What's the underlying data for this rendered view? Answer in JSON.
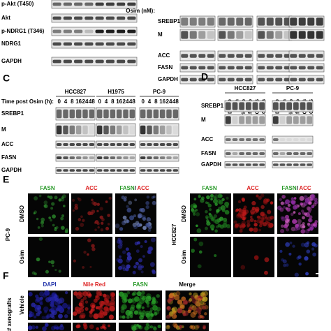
{
  "panel_top_left": {
    "rows": [
      "p-Akt (T450)",
      "Akt",
      "p-NDRG1 (T346)",
      "NDRG1",
      "GAPDH"
    ]
  },
  "panel_top_right": {
    "axis_label": "Osim (nM):",
    "rows": [
      "SREBP1",
      "M",
      "ACC",
      "FASN",
      "GAPDH"
    ]
  },
  "panel_c": {
    "letter": "C",
    "axis_label": "Time post Osim (h):",
    "groups": [
      {
        "name": "HCC827",
        "lanes": [
          "0",
          "4",
          "8",
          "16",
          "24",
          "48"
        ]
      },
      {
        "name": "H1975",
        "lanes": [
          "0",
          "4",
          "8",
          "16",
          "24",
          "48"
        ]
      },
      {
        "name": "PC-9",
        "lanes": [
          "0",
          "4",
          "8",
          "16",
          "24",
          "48"
        ]
      }
    ],
    "rows": [
      "SREBP1",
      "M",
      "ACC",
      "FASN",
      "GAPDH"
    ]
  },
  "panel_d": {
    "letter": "D",
    "groups": [
      {
        "name": "HCC827",
        "lanes": [
          "DMSO",
          "Osim",
          "Erlotinib",
          "Afatinib",
          "EGF816",
          "CO1686"
        ]
      },
      {
        "name": "PC-9",
        "lanes": [
          "DMSO",
          "Osim",
          "Erlotinib",
          "Afatinib",
          "EGF816",
          "CO1686"
        ]
      }
    ],
    "rows": [
      "SREBP1",
      "M",
      "ACC",
      "FASN",
      "GAPDH"
    ]
  },
  "panel_e": {
    "letter": "E",
    "channels": [
      "FASN",
      "ACC"
    ],
    "separator": "/",
    "left_cell_line": "PC-9",
    "right_cell_line": "HCC827",
    "conditions": [
      "DMSO",
      "Osim"
    ]
  },
  "panel_f": {
    "letter": "F",
    "channels": [
      "DAPI",
      "Nile Red",
      "FASN",
      "Merge"
    ],
    "conditions": [
      "Vehicle"
    ],
    "side_label": "# xenografts"
  }
}
